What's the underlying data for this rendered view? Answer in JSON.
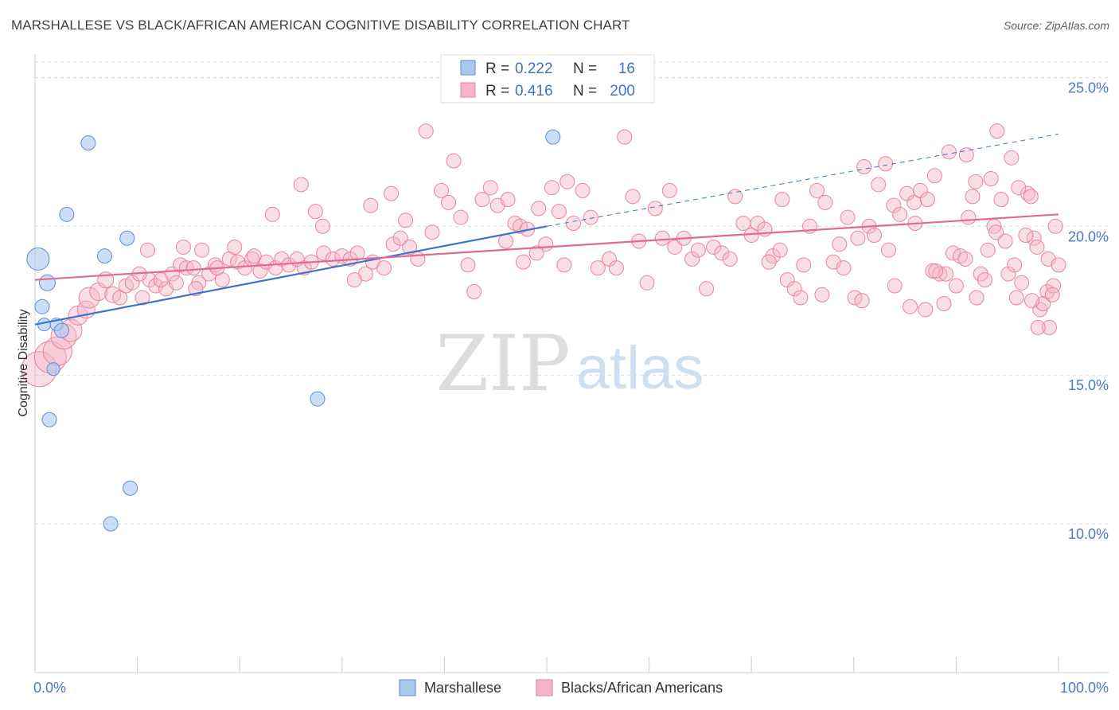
{
  "title": "MARSHALLESE VS BLACK/AFRICAN AMERICAN COGNITIVE DISABILITY CORRELATION CHART",
  "source": "Source: ZipAtlas.com",
  "watermark": {
    "zip": "ZIP",
    "atlas": "atlas"
  },
  "colors": {
    "blue_fill": "#a9c8f0",
    "blue_stroke": "#5b8fd6",
    "blue_line": "#3a74cc",
    "pink_fill": "#f5b5c8",
    "pink_stroke": "#e7849f",
    "pink_line": "#e06b94",
    "grid": "#d8d8d8",
    "tick_text": "#4a7ac8"
  },
  "legend": {
    "rows": [
      {
        "r_label": "R =",
        "r_value": "0.222",
        "n_label": "N =",
        "n_value": "16"
      },
      {
        "r_label": "R =",
        "r_value": "0.416",
        "n_label": "N =",
        "n_value": "200"
      }
    ]
  },
  "chart_data": {
    "type": "scatter",
    "title": "MARSHALLESE VS BLACK/AFRICAN AMERICAN COGNITIVE DISABILITY CORRELATION CHART",
    "xlabel": "",
    "ylabel": "Cognitive Disability",
    "xlim": [
      0,
      100
    ],
    "ylim": [
      5.0,
      26.0
    ],
    "x_ticks": [
      {
        "value": 0,
        "label": "0.0%"
      },
      {
        "value": 100,
        "label": "100.0%"
      }
    ],
    "y_ticks": [
      {
        "value": 10,
        "label": "10.0%"
      },
      {
        "value": 15,
        "label": "15.0%"
      },
      {
        "value": 20,
        "label": "20.0%"
      },
      {
        "value": 25,
        "label": "25.0%"
      }
    ],
    "grid": true,
    "legend_placement": "top-center",
    "series": [
      {
        "name": "Marshallese",
        "color": "#a9c8f0",
        "trend": {
          "x0": 0,
          "y0": 16.7,
          "x1": 50,
          "y1": 20.0,
          "dashed_to_x": 100,
          "dashed_to_y": 23.1
        },
        "points": [
          [
            0.3,
            18.9,
            14
          ],
          [
            1.2,
            18.1,
            10
          ],
          [
            0.7,
            17.3,
            9
          ],
          [
            0.9,
            16.7,
            8
          ],
          [
            2.1,
            16.7,
            8
          ],
          [
            2.6,
            16.5,
            9
          ],
          [
            1.4,
            13.5,
            9
          ],
          [
            5.2,
            22.8,
            9
          ],
          [
            3.1,
            20.4,
            9
          ],
          [
            6.8,
            19.0,
            9
          ],
          [
            9.0,
            19.6,
            9
          ],
          [
            7.4,
            10.0,
            9
          ],
          [
            9.3,
            11.2,
            9
          ],
          [
            27.6,
            14.2,
            9
          ],
          [
            50.6,
            23.0,
            9
          ],
          [
            1.8,
            15.2,
            8
          ]
        ]
      },
      {
        "name": "Blacks/African Americans",
        "color": "#f5b5c8",
        "trend": {
          "x0": 0,
          "y0": 18.2,
          "x1": 100,
          "y1": 20.4
        },
        "points": [
          [
            0.4,
            15.2,
            22
          ],
          [
            1.5,
            15.6,
            20
          ],
          [
            2.2,
            15.8,
            18
          ],
          [
            2.8,
            16.3,
            16
          ],
          [
            3.5,
            16.5,
            14
          ],
          [
            4.2,
            17.0,
            12
          ],
          [
            5.0,
            17.2,
            11
          ],
          [
            5.3,
            17.6,
            13
          ],
          [
            6.2,
            17.8,
            11
          ],
          [
            6.9,
            18.2,
            10
          ],
          [
            7.6,
            17.7,
            10
          ],
          [
            8.3,
            17.6,
            9
          ],
          [
            8.9,
            18.0,
            9
          ],
          [
            9.5,
            18.1,
            9
          ],
          [
            10.5,
            17.6,
            9
          ],
          [
            11.2,
            18.2,
            9
          ],
          [
            11.8,
            18.0,
            9
          ],
          [
            12.8,
            17.9,
            9
          ],
          [
            13.4,
            18.4,
            9
          ],
          [
            14.2,
            18.7,
            9
          ],
          [
            14.8,
            18.6,
            9
          ],
          [
            15.5,
            18.6,
            9
          ],
          [
            16.0,
            18.1,
            9
          ],
          [
            17.0,
            18.4,
            9
          ],
          [
            17.6,
            18.7,
            9
          ],
          [
            18.3,
            18.2,
            9
          ],
          [
            19.0,
            18.9,
            9
          ],
          [
            19.8,
            18.8,
            9
          ],
          [
            20.5,
            18.6,
            9
          ],
          [
            21.2,
            18.9,
            9
          ],
          [
            22.0,
            18.5,
            9
          ],
          [
            22.6,
            18.8,
            9
          ],
          [
            23.5,
            18.6,
            9
          ],
          [
            24.1,
            18.9,
            9
          ],
          [
            24.8,
            18.7,
            9
          ],
          [
            25.6,
            18.9,
            9
          ],
          [
            26.3,
            18.6,
            9
          ],
          [
            27.0,
            18.8,
            9
          ],
          [
            28.2,
            19.1,
            9
          ],
          [
            29.1,
            18.9,
            9
          ],
          [
            30.0,
            19.0,
            9
          ],
          [
            30.8,
            18.9,
            9
          ],
          [
            31.5,
            19.1,
            9
          ],
          [
            32.3,
            18.4,
            9
          ],
          [
            33.0,
            18.8,
            9
          ],
          [
            34.1,
            18.6,
            9
          ],
          [
            35.0,
            19.4,
            9
          ],
          [
            35.7,
            19.6,
            9
          ],
          [
            36.6,
            19.3,
            9
          ],
          [
            37.4,
            18.9,
            9
          ],
          [
            11.0,
            19.2,
            9
          ],
          [
            14.5,
            19.3,
            9
          ],
          [
            16.3,
            19.2,
            9
          ],
          [
            19.5,
            19.3,
            9
          ],
          [
            21.4,
            19.0,
            9
          ],
          [
            10.2,
            18.4,
            9
          ],
          [
            12.3,
            18.2,
            9
          ],
          [
            13.8,
            18.1,
            9
          ],
          [
            15.7,
            17.9,
            9
          ],
          [
            17.8,
            18.6,
            9
          ],
          [
            23.2,
            20.4,
            9
          ],
          [
            26.0,
            21.4,
            9
          ],
          [
            27.4,
            20.5,
            9
          ],
          [
            28.1,
            20.0,
            9
          ],
          [
            31.2,
            18.2,
            9
          ],
          [
            32.8,
            20.7,
            9
          ],
          [
            34.8,
            21.1,
            9
          ],
          [
            36.2,
            20.2,
            9
          ],
          [
            38.2,
            23.2,
            9
          ],
          [
            38.8,
            19.8,
            9
          ],
          [
            39.7,
            21.2,
            9
          ],
          [
            40.4,
            20.8,
            9
          ],
          [
            40.9,
            22.2,
            9
          ],
          [
            41.6,
            20.3,
            9
          ],
          [
            42.3,
            18.7,
            9
          ],
          [
            42.9,
            17.8,
            9
          ],
          [
            43.7,
            20.9,
            9
          ],
          [
            44.5,
            21.3,
            9
          ],
          [
            45.2,
            20.7,
            9
          ],
          [
            46.2,
            20.9,
            9
          ],
          [
            46.9,
            20.1,
            9
          ],
          [
            47.4,
            20.0,
            9
          ],
          [
            48.1,
            19.9,
            9
          ],
          [
            49.2,
            20.6,
            9
          ],
          [
            49.9,
            19.4,
            9
          ],
          [
            50.5,
            21.3,
            9
          ],
          [
            51.2,
            20.5,
            9
          ],
          [
            52.0,
            21.5,
            9
          ],
          [
            52.6,
            20.1,
            9
          ],
          [
            53.5,
            21.2,
            9
          ],
          [
            46.0,
            19.5,
            9
          ],
          [
            47.7,
            18.8,
            9
          ],
          [
            49.0,
            19.1,
            9
          ],
          [
            51.7,
            18.7,
            9
          ],
          [
            54.3,
            20.3,
            9
          ],
          [
            55.0,
            18.6,
            9
          ],
          [
            56.1,
            18.9,
            9
          ],
          [
            56.8,
            18.6,
            9
          ],
          [
            57.6,
            23.0,
            9
          ],
          [
            58.4,
            21.0,
            9
          ],
          [
            59.0,
            19.5,
            9
          ],
          [
            59.8,
            18.1,
            9
          ],
          [
            60.6,
            20.6,
            9
          ],
          [
            61.3,
            19.6,
            9
          ],
          [
            62.0,
            21.2,
            9
          ],
          [
            62.5,
            19.3,
            9
          ],
          [
            63.4,
            19.6,
            9
          ],
          [
            64.2,
            18.9,
            9
          ],
          [
            64.8,
            19.2,
            9
          ],
          [
            65.6,
            17.9,
            9
          ],
          [
            66.3,
            19.3,
            9
          ],
          [
            67.1,
            19.1,
            9
          ],
          [
            67.9,
            18.9,
            9
          ],
          [
            68.4,
            21.0,
            9
          ],
          [
            69.2,
            20.1,
            9
          ],
          [
            70.0,
            19.7,
            9
          ],
          [
            70.6,
            20.1,
            9
          ],
          [
            71.3,
            19.9,
            9
          ],
          [
            72.1,
            19.0,
            9
          ],
          [
            72.8,
            19.2,
            9
          ],
          [
            73.5,
            18.2,
            9
          ],
          [
            74.2,
            17.9,
            9
          ],
          [
            74.8,
            17.6,
            9
          ],
          [
            75.7,
            20.0,
            9
          ],
          [
            76.4,
            21.2,
            9
          ],
          [
            77.2,
            20.8,
            9
          ],
          [
            78.0,
            18.8,
            9
          ],
          [
            78.6,
            19.4,
            9
          ],
          [
            79.4,
            20.3,
            9
          ],
          [
            80.1,
            17.6,
            9
          ],
          [
            80.8,
            17.5,
            9
          ],
          [
            81.5,
            20.0,
            9
          ],
          [
            82.4,
            21.4,
            9
          ],
          [
            83.1,
            22.1,
            9
          ],
          [
            83.9,
            20.7,
            9
          ],
          [
            84.5,
            20.4,
            9
          ],
          [
            85.2,
            21.1,
            9
          ],
          [
            85.9,
            20.8,
            9
          ],
          [
            86.5,
            21.2,
            9
          ],
          [
            87.2,
            20.9,
            9
          ],
          [
            87.7,
            18.5,
            9
          ],
          [
            88.4,
            18.4,
            9
          ],
          [
            89.0,
            18.4,
            9
          ],
          [
            89.7,
            19.1,
            9
          ],
          [
            90.4,
            19.0,
            9
          ],
          [
            91.2,
            20.3,
            9
          ],
          [
            91.9,
            21.5,
            9
          ],
          [
            92.4,
            18.4,
            9
          ],
          [
            93.1,
            19.2,
            9
          ],
          [
            93.7,
            20.0,
            9
          ],
          [
            94.4,
            20.9,
            9
          ],
          [
            95.1,
            18.4,
            9
          ],
          [
            95.7,
            18.7,
            9
          ],
          [
            96.4,
            18.1,
            9
          ],
          [
            97.0,
            21.1,
            9
          ],
          [
            97.6,
            19.6,
            9
          ],
          [
            98.2,
            17.2,
            9
          ],
          [
            98.9,
            17.8,
            9
          ],
          [
            99.5,
            18.0,
            9
          ],
          [
            71.7,
            18.8,
            9
          ],
          [
            73.0,
            20.9,
            9
          ],
          [
            75.1,
            18.7,
            9
          ],
          [
            76.9,
            17.7,
            9
          ],
          [
            79.0,
            18.6,
            9
          ],
          [
            82.0,
            19.7,
            9
          ],
          [
            84.0,
            18.0,
            9
          ],
          [
            86.0,
            20.1,
            9
          ],
          [
            88.0,
            18.5,
            9
          ],
          [
            89.3,
            22.5,
            9
          ],
          [
            90.9,
            18.9,
            9
          ],
          [
            92.0,
            17.6,
            9
          ],
          [
            93.4,
            21.6,
            9
          ],
          [
            94.0,
            23.2,
            9
          ],
          [
            94.8,
            19.5,
            9
          ],
          [
            95.4,
            22.3,
            9
          ],
          [
            96.1,
            21.3,
            9
          ],
          [
            96.8,
            19.7,
            9
          ],
          [
            97.3,
            21.0,
            9
          ],
          [
            97.9,
            19.3,
            9
          ],
          [
            98.5,
            17.4,
            9
          ],
          [
            99.1,
            16.6,
            9
          ],
          [
            99.7,
            20.0,
            9
          ],
          [
            87.0,
            17.2,
            9
          ],
          [
            88.8,
            17.4,
            9
          ],
          [
            90.0,
            18.0,
            9
          ],
          [
            91.6,
            21.0,
            9
          ],
          [
            92.8,
            18.2,
            9
          ],
          [
            93.9,
            19.8,
            9
          ],
          [
            95.9,
            17.6,
            9
          ],
          [
            97.4,
            17.5,
            9
          ],
          [
            98.0,
            16.6,
            9
          ],
          [
            99.0,
            18.9,
            9
          ],
          [
            99.4,
            17.7,
            9
          ],
          [
            100.0,
            18.7,
            9
          ],
          [
            80.4,
            19.6,
            9
          ],
          [
            81.0,
            22.0,
            9
          ],
          [
            83.4,
            19.2,
            9
          ],
          [
            85.5,
            17.3,
            9
          ],
          [
            87.9,
            21.7,
            9
          ],
          [
            91.0,
            22.4,
            9
          ]
        ]
      }
    ]
  },
  "bottom_legend": [
    "Marshallese",
    "Blacks/African Americans"
  ]
}
